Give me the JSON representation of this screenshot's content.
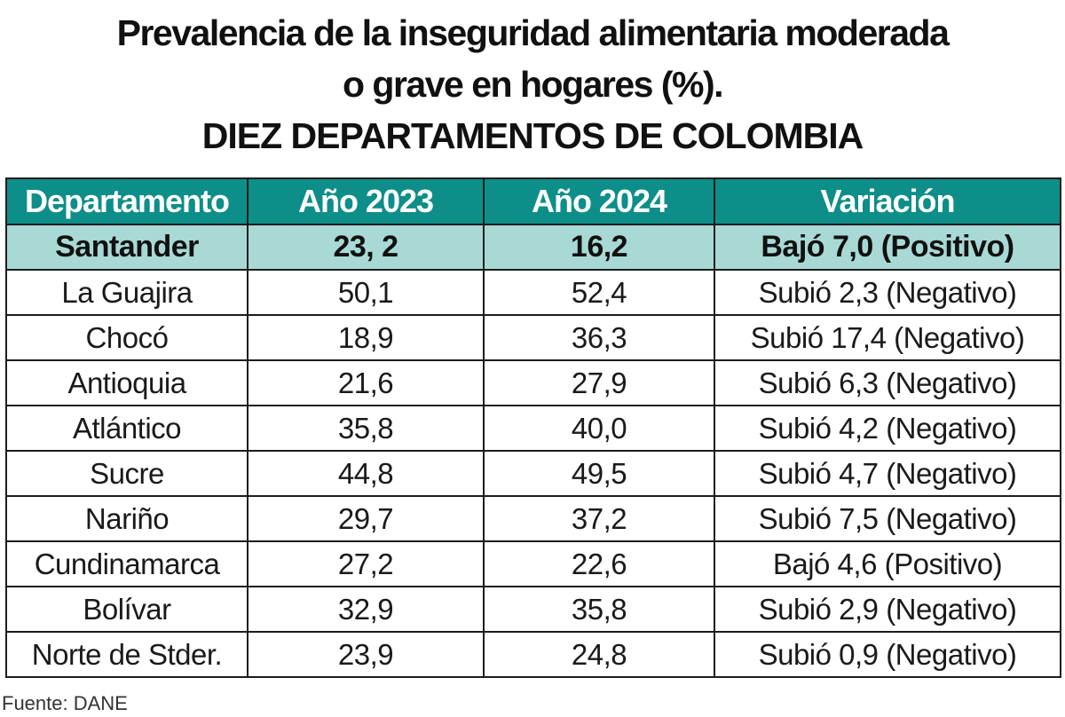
{
  "title": {
    "line1": "Prevalencia de la inseguridad alimentaria moderada",
    "line2": "o grave en hogares (%).",
    "line3": "DIEZ DEPARTAMENTOS DE COLOMBIA"
  },
  "header_color": "#0e8e88",
  "highlight_color": "#a8d9d5",
  "chart_data": {
    "type": "table",
    "columns": [
      "Departamento",
      "Año 2023",
      "Año 2024",
      "Variación"
    ],
    "rows": [
      [
        "Santander",
        "23, 2",
        "16,2",
        "Bajó 7,0 (Positivo)"
      ],
      [
        "La Guajira",
        "50,1",
        "52,4",
        "Subió 2,3 (Negativo)"
      ],
      [
        "Chocó",
        "18,9",
        "36,3",
        "Subió 17,4 (Negativo)"
      ],
      [
        "Antioquia",
        "21,6",
        "27,9",
        "Subió 6,3 (Negativo)"
      ],
      [
        "Atlántico",
        "35,8",
        "40,0",
        "Subió 4,2 (Negativo)"
      ],
      [
        "Sucre",
        "44,8",
        "49,5",
        "Subió 4,7 (Negativo)"
      ],
      [
        "Nariño",
        "29,7",
        "37,2",
        "Subió 7,5 (Negativo)"
      ],
      [
        "Cundinamarca",
        "27,2",
        "22,6",
        "Bajó 4,6 (Positivo)"
      ],
      [
        "Bolívar",
        "32,9",
        "35,8",
        "Subió 2,9 (Negativo)"
      ],
      [
        "Norte de Stder.",
        "23,9",
        "24,8",
        "Subió 0,9 (Negativo)"
      ]
    ],
    "highlighted_row": "Santander"
  },
  "source": "Fuente: DANE"
}
